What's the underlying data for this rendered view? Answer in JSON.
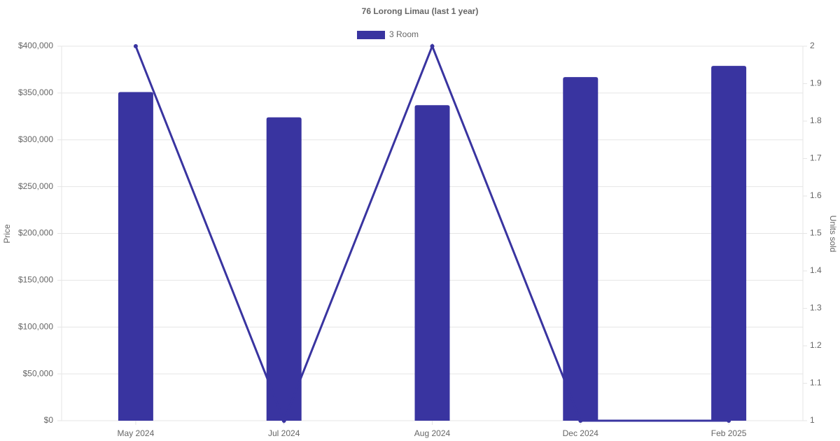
{
  "chart_data": {
    "type": "bar",
    "title": "76 Lorong Limau (last 1 year)",
    "y_label": "Price",
    "y2_label": "Units sold",
    "categories": [
      "May 2024",
      "Jul 2024",
      "Aug 2024",
      "Dec 2024",
      "Feb 2025"
    ],
    "series": [
      {
        "name": "3 Room",
        "type": "bar",
        "color": "#3934a0",
        "values": [
          351000,
          324000,
          337000,
          367000,
          379000
        ]
      },
      {
        "type": "line",
        "axis": "y2",
        "color": "#3934a0",
        "values": [
          2,
          1,
          2,
          1,
          1
        ]
      }
    ],
    "ylim": [
      0,
      400000
    ],
    "yticks": [
      {
        "value": 0,
        "label": "$0"
      },
      {
        "value": 50000,
        "label": "$50,000"
      },
      {
        "value": 100000,
        "label": "$100,000"
      },
      {
        "value": 150000,
        "label": "$150,000"
      },
      {
        "value": 200000,
        "label": "$200,000"
      },
      {
        "value": 250000,
        "label": "$250,000"
      },
      {
        "value": 300000,
        "label": "$300,000"
      },
      {
        "value": 350000,
        "label": "$350,000"
      },
      {
        "value": 400000,
        "label": "$400,000"
      }
    ],
    "y2lim": [
      1,
      2
    ],
    "y2ticks": [
      1,
      1.1,
      1.2,
      1.3,
      1.4,
      1.5,
      1.6,
      1.7,
      1.8,
      1.9,
      2
    ],
    "grid": true,
    "legend": "top"
  }
}
